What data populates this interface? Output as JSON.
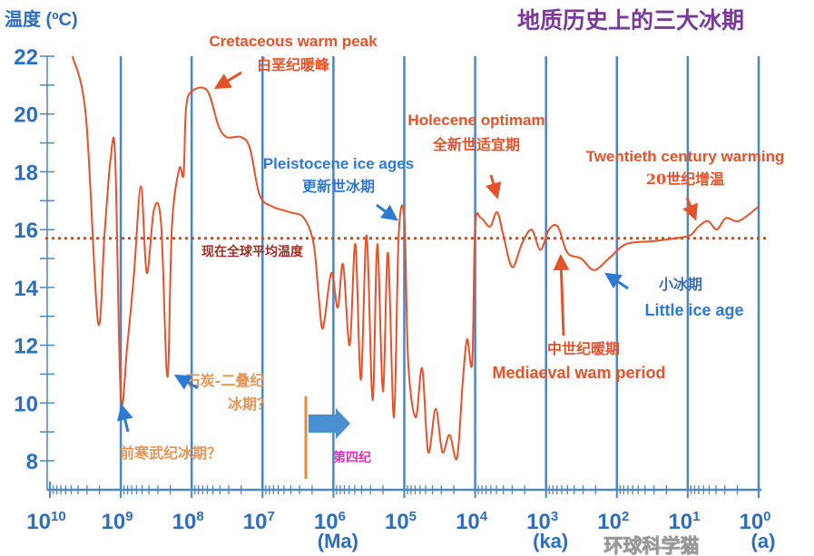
{
  "chart_data": {
    "type": "line",
    "title": "地质历史上的三大冰期",
    "ylabel": "温度 (ºC)",
    "x_scale": "log",
    "x_reversed": true,
    "xlim": [
      10000000000,
      1
    ],
    "ylim": [
      7.5,
      22
    ],
    "x_ticks": [
      {
        "base": "10",
        "exp": "10"
      },
      {
        "base": "10",
        "exp": "9"
      },
      {
        "base": "10",
        "exp": "8"
      },
      {
        "base": "10",
        "exp": "7"
      },
      {
        "base": "10",
        "exp": "6"
      },
      {
        "base": "10",
        "exp": "5"
      },
      {
        "base": "10",
        "exp": "4"
      },
      {
        "base": "10",
        "exp": "3"
      },
      {
        "base": "10",
        "exp": "2"
      },
      {
        "base": "10",
        "exp": "1"
      },
      {
        "base": "10",
        "exp": "0"
      }
    ],
    "x_units": [
      {
        "label": "(Ma)",
        "at": 1000000
      },
      {
        "label": "(ka)",
        "at": 1000
      },
      {
        "label": "(a)",
        "at": 1
      }
    ],
    "y_ticks": [
      "22",
      "20",
      "18",
      "16",
      "14",
      "12",
      "10",
      "8"
    ],
    "vertical_grid": true,
    "reference_line": {
      "value": 15.7,
      "label": "现在全球平均温度",
      "color": "#c8501e",
      "style": "dotted"
    },
    "series": [
      {
        "color": "#e5532a",
        "points": [
          [
            4800000000.0,
            22
          ],
          [
            3100000000.0,
            19.9
          ],
          [
            2100000000.0,
            12.8
          ],
          [
            1700000000.0,
            15.8
          ],
          [
            1400000000.0,
            18.4
          ],
          [
            1200000000.0,
            18.5
          ],
          [
            1000000000.0,
            10.2
          ],
          [
            810000000.0,
            12
          ],
          [
            650000000.0,
            14.5
          ],
          [
            520000000.0,
            17.5
          ],
          [
            430000000.0,
            14.5
          ],
          [
            340000000.0,
            16.7
          ],
          [
            270000000.0,
            16.2
          ],
          [
            220000000.0,
            10.9
          ],
          [
            190000000.0,
            16.1
          ],
          [
            150000000.0,
            18.1
          ],
          [
            130000000.0,
            17.9
          ],
          [
            120000000.0,
            20.2
          ],
          [
            98000000.0,
            20.8
          ],
          [
            60000000.0,
            20.8
          ],
          [
            42000000.0,
            19.6
          ],
          [
            32000000.0,
            19.2
          ],
          [
            20000000.0,
            19.2
          ],
          [
            15000000.0,
            18.8
          ],
          [
            11000000.0,
            17.2
          ],
          [
            7300000.0,
            16.8
          ],
          [
            4100000.0,
            16.6
          ],
          [
            2600000.0,
            16.4
          ],
          [
            1900000.0,
            15.5
          ],
          [
            1600000.0,
            13.6
          ],
          [
            1400000.0,
            12.6
          ],
          [
            1070000.0,
            14.5
          ],
          [
            870000.0,
            13.3
          ],
          [
            730000.0,
            14.8
          ],
          [
            590000.0,
            12.0
          ],
          [
            490000.0,
            15.5
          ],
          [
            410000.0,
            10.8
          ],
          [
            340000.0,
            15.8
          ],
          [
            280000.0,
            10.1
          ],
          [
            240000.0,
            15.5
          ],
          [
            200000.0,
            10.4
          ],
          [
            170000.0,
            15.2
          ],
          [
            140000.0,
            9.5
          ],
          [
            120000.0,
            15.8
          ],
          [
            100000.0,
            16.4
          ],
          [
            88000.0,
            11.4
          ],
          [
            69000.0,
            9.5
          ],
          [
            56000.0,
            11.2
          ],
          [
            46000.0,
            8.3
          ],
          [
            36000.0,
            9.8
          ],
          [
            29000.0,
            8.3
          ],
          [
            23000.0,
            8.9
          ],
          [
            18000.0,
            8.1
          ],
          [
            15000.0,
            10.7
          ],
          [
            13000.0,
            12.2
          ],
          [
            11000.0,
            11.4
          ],
          [
            10000.0,
            16.1
          ],
          [
            8300.0,
            16.4
          ],
          [
            6200.0,
            16.1
          ],
          [
            4900.0,
            16.6
          ],
          [
            4000.0,
            15.8
          ],
          [
            3000.0,
            14.7
          ],
          [
            2200.0,
            15.5
          ],
          [
            1600.0,
            16.0
          ],
          [
            1200.0,
            15.3
          ],
          [
            910,
            16.0
          ],
          [
            680,
            16.1
          ],
          [
            500,
            15.2
          ],
          [
            320,
            15.0
          ],
          [
            210,
            14.6
          ],
          [
            130,
            15.0
          ],
          [
            74,
            15.5
          ],
          [
            31,
            15.6
          ],
          [
            15,
            15.7
          ],
          [
            9.3,
            15.8
          ],
          [
            7.1,
            16.1
          ],
          [
            5.2,
            16.3
          ],
          [
            3.9,
            16.0
          ],
          [
            2.9,
            16.4
          ],
          [
            1.9,
            16.3
          ],
          [
            1,
            16.8
          ]
        ]
      }
    ],
    "annotations": [
      {
        "en": "Cretaceous warm peak",
        "zh": "白垩纪暖峰",
        "color": "#e5532a"
      },
      {
        "en": "Pleistocene ice ages",
        "zh": "更新世冰期",
        "color": "#2f7ad0"
      },
      {
        "en": "Holecene optimam",
        "zh": "全新世适宜期",
        "color": "#e5532a"
      },
      {
        "en": "Twentieth century warming",
        "zh": "20世纪增温",
        "color": "#e5532a"
      },
      {
        "en": "Little ice age",
        "zh": "小冰期",
        "color": "#2f7ad0"
      },
      {
        "en": "Mediaeval wam period",
        "zh": "中世纪暖期",
        "color": "#e5532a"
      },
      {
        "zh": "石炭-二叠纪",
        "zh2": "冰期？",
        "color": "#e39556"
      },
      {
        "zh": "前寒武纪冰期？",
        "color": "#e39556"
      },
      {
        "zh": "第四纪",
        "color": "#e030c0"
      }
    ]
  },
  "watermark": "环球科学猫"
}
